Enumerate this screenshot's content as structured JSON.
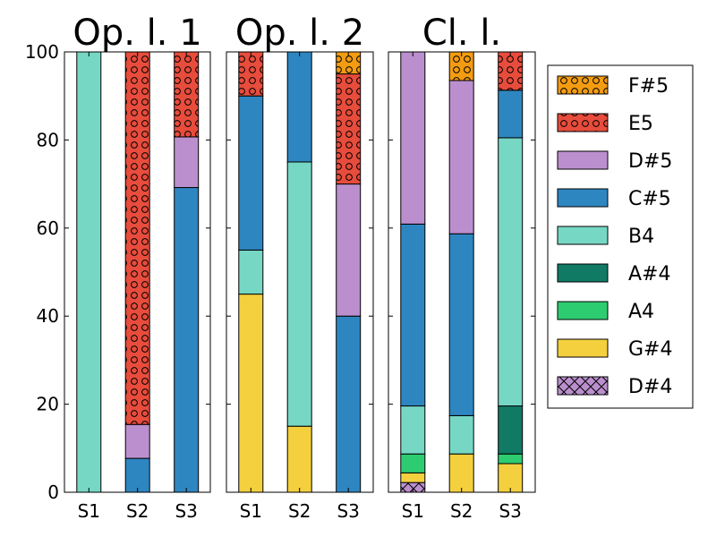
{
  "chart_data": [
    {
      "type": "bar",
      "stacked": true,
      "title": "Op. l. 1",
      "categories": [
        "S1",
        "S2",
        "S3"
      ],
      "ylim": [
        0,
        100
      ],
      "yticks": [
        "0",
        "20",
        "40",
        "60",
        "80",
        "100"
      ],
      "series": [
        {
          "name": "D#4",
          "values": [
            0,
            0,
            0
          ]
        },
        {
          "name": "G#4",
          "values": [
            0,
            0,
            0
          ]
        },
        {
          "name": "A4",
          "values": [
            0,
            0,
            0
          ]
        },
        {
          "name": "A#4",
          "values": [
            0,
            0,
            0
          ]
        },
        {
          "name": "B4",
          "values": [
            100,
            0,
            0
          ]
        },
        {
          "name": "C#5",
          "values": [
            0,
            7.7,
            69.2
          ]
        },
        {
          "name": "D#5",
          "values": [
            0,
            7.7,
            11.5
          ]
        },
        {
          "name": "E5",
          "values": [
            0,
            84.6,
            19.3
          ]
        },
        {
          "name": "F#5",
          "values": [
            0,
            0,
            0
          ]
        }
      ]
    },
    {
      "type": "bar",
      "stacked": true,
      "title": "Op. l. 2",
      "categories": [
        "S1",
        "S2",
        "S3"
      ],
      "ylim": [
        0,
        100
      ],
      "series": [
        {
          "name": "D#4",
          "values": [
            0,
            0,
            0
          ]
        },
        {
          "name": "G#4",
          "values": [
            45,
            15,
            0
          ]
        },
        {
          "name": "A4",
          "values": [
            0,
            0,
            0
          ]
        },
        {
          "name": "A#4",
          "values": [
            0,
            0,
            0
          ]
        },
        {
          "name": "B4",
          "values": [
            10,
            60,
            0
          ]
        },
        {
          "name": "C#5",
          "values": [
            35,
            25,
            40
          ]
        },
        {
          "name": "D#5",
          "values": [
            0,
            0,
            30
          ]
        },
        {
          "name": "E5",
          "values": [
            10,
            0,
            25
          ]
        },
        {
          "name": "F#5",
          "values": [
            0,
            0,
            5
          ]
        }
      ]
    },
    {
      "type": "bar",
      "stacked": true,
      "title": "Cl. l.",
      "categories": [
        "S1",
        "S2",
        "S3"
      ],
      "ylim": [
        0,
        100
      ],
      "series": [
        {
          "name": "D#4",
          "values": [
            2.2,
            0,
            0
          ]
        },
        {
          "name": "G#4",
          "values": [
            2.2,
            8.7,
            6.5
          ]
        },
        {
          "name": "A4",
          "values": [
            4.3,
            0,
            2.2
          ]
        },
        {
          "name": "A#4",
          "values": [
            0,
            0,
            10.9
          ]
        },
        {
          "name": "B4",
          "values": [
            10.9,
            8.7,
            60.9
          ]
        },
        {
          "name": "C#5",
          "values": [
            41.3,
            41.3,
            10.8
          ]
        },
        {
          "name": "D#5",
          "values": [
            39.1,
            34.8,
            0
          ]
        },
        {
          "name": "E5",
          "values": [
            0,
            0,
            8.7
          ]
        },
        {
          "name": "F#5",
          "values": [
            0,
            6.5,
            0
          ]
        }
      ]
    }
  ],
  "legend": {
    "placement": "right",
    "entries": [
      {
        "name": "F#5",
        "color": "#f39c12",
        "pattern": "circles"
      },
      {
        "name": "E5",
        "color": "#e74c3c",
        "pattern": "circles"
      },
      {
        "name": "D#5",
        "color": "#bb8fce",
        "pattern": "none"
      },
      {
        "name": "C#5",
        "color": "#2e86c1",
        "pattern": "none"
      },
      {
        "name": "B4",
        "color": "#76d7c4",
        "pattern": "none"
      },
      {
        "name": "A#4",
        "color": "#117a65",
        "pattern": "none"
      },
      {
        "name": "A4",
        "color": "#2ecc71",
        "pattern": "none"
      },
      {
        "name": "G#4",
        "color": "#f4d03f",
        "pattern": "none"
      },
      {
        "name": "D#4",
        "color": "#bb8fce",
        "pattern": "crosshatch"
      }
    ]
  }
}
